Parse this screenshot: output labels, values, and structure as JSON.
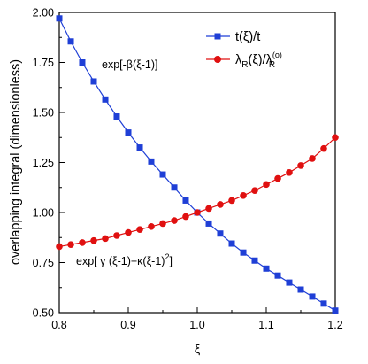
{
  "chart_data": {
    "type": "line",
    "xlabel": "ξ",
    "ylabel": "overlapping integral (dimensionless)",
    "xlim": [
      0.8,
      1.2
    ],
    "ylim": [
      0.5,
      2.0
    ],
    "x_ticks": [
      "0.8",
      "0.9",
      "1.0",
      "1.1",
      "1.2"
    ],
    "y_ticks": [
      "0.50",
      "0.75",
      "1.00",
      "1.25",
      "1.50",
      "1.75",
      "2.00"
    ],
    "x_tick_values": [
      0.8,
      0.9,
      1.0,
      1.1,
      1.2
    ],
    "y_tick_values": [
      0.5,
      0.75,
      1.0,
      1.25,
      1.5,
      1.75,
      2.0
    ],
    "grid": false,
    "legend_position": "top-right",
    "series": [
      {
        "name": "t(ξ)/t",
        "color": "#1f3fd6",
        "marker": "square",
        "x": [
          0.8,
          0.8167,
          0.8333,
          0.85,
          0.8667,
          0.8833,
          0.9,
          0.9167,
          0.9333,
          0.95,
          0.9667,
          0.9833,
          1.0,
          1.0167,
          1.0333,
          1.05,
          1.0667,
          1.0833,
          1.1,
          1.1167,
          1.1333,
          1.15,
          1.1667,
          1.1833,
          1.2
        ],
        "y": [
          1.97,
          1.855,
          1.75,
          1.655,
          1.565,
          1.48,
          1.4,
          1.325,
          1.255,
          1.19,
          1.125,
          1.06,
          1.0,
          0.945,
          0.895,
          0.845,
          0.8,
          0.76,
          0.72,
          0.685,
          0.65,
          0.615,
          0.58,
          0.545,
          0.51
        ]
      },
      {
        "name": "λR(ξ)/λR(0)",
        "color": "#e01010",
        "marker": "circle",
        "x": [
          0.8,
          0.8167,
          0.8333,
          0.85,
          0.8667,
          0.8833,
          0.9,
          0.9167,
          0.9333,
          0.95,
          0.9667,
          0.9833,
          1.0,
          1.0167,
          1.0333,
          1.05,
          1.0667,
          1.0833,
          1.1,
          1.1167,
          1.1333,
          1.15,
          1.1667,
          1.1833,
          1.2
        ],
        "y": [
          0.83,
          0.84,
          0.85,
          0.86,
          0.87,
          0.885,
          0.9,
          0.915,
          0.93,
          0.945,
          0.96,
          0.98,
          1.0,
          1.02,
          1.04,
          1.06,
          1.085,
          1.11,
          1.14,
          1.17,
          1.2,
          1.235,
          1.27,
          1.32,
          1.375
        ]
      }
    ],
    "legend": [
      {
        "main": "t(ξ)/t",
        "sub": "",
        "tail": "",
        "sup": "",
        "sub2": ""
      },
      {
        "main": "λ",
        "sub": "R",
        "tail": "(ξ)/λ",
        "sup": "(o)",
        "sub2": "R"
      }
    ],
    "annotations": [
      {
        "text": "exp[-β(ξ-1)]"
      },
      {
        "text": "exp[ γ (ξ-1)+κ(ξ-1)",
        "sup": "2",
        "tail": "]"
      }
    ]
  }
}
